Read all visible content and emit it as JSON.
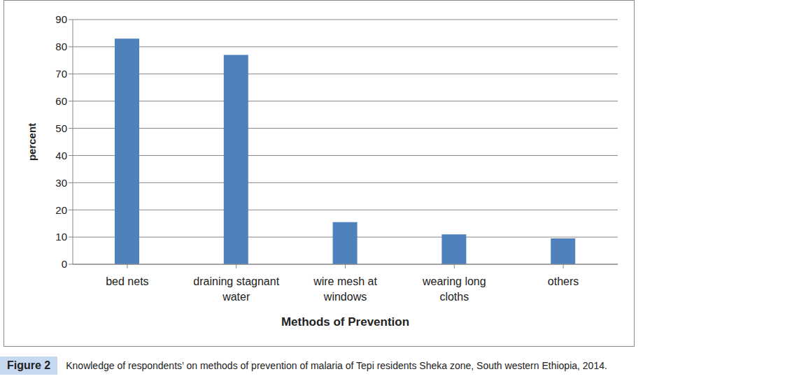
{
  "chart_data": {
    "type": "bar",
    "categories": [
      "bed nets",
      "draining stagnant water",
      "wire mesh at windows",
      "wearing long cloths",
      "others"
    ],
    "values": [
      83,
      77,
      15.5,
      11,
      9.5
    ],
    "color": "#4f81bd",
    "x_label": "Methods of Prevention",
    "y_label": "percent",
    "ylim": [
      0,
      90
    ],
    "yticks": [
      0,
      10,
      20,
      30,
      40,
      50,
      60,
      70,
      80,
      90
    ],
    "grid": true,
    "caption_label": "Figure 2",
    "caption": "Knowledge of respondents’ on methods of prevention of malaria of Tepi residents Sheka zone, South western Ethiopia, 2014."
  }
}
